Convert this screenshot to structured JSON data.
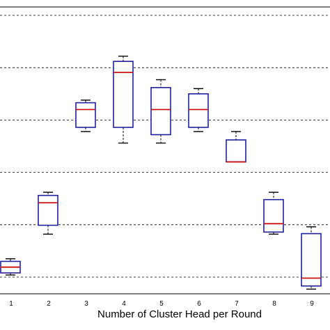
{
  "chart_data": {
    "type": "box",
    "title": "",
    "xlabel": "Number of Cluster Head per Round",
    "ylabel": "",
    "categories": [
      "1",
      "2",
      "3",
      "4",
      "5",
      "6",
      "7",
      "8",
      "9"
    ],
    "ylim": [
      -0.4,
      5.4
    ],
    "yticks": [
      0,
      1,
      2,
      3,
      4,
      5
    ],
    "grid": "horizontal-dashed",
    "colors": {
      "box": "#1f1f9e",
      "median": "#cc1111",
      "whisker": "#000000",
      "grid": "#000000"
    },
    "boxes": [
      {
        "label": "1",
        "min": 0.04,
        "q1": 0.08,
        "median": 0.19,
        "q3": 0.3,
        "max": 0.35
      },
      {
        "label": "2",
        "min": 0.82,
        "q1": 0.99,
        "median": 1.42,
        "q3": 1.56,
        "max": 1.62
      },
      {
        "label": "3",
        "min": 2.78,
        "q1": 2.86,
        "median": 3.2,
        "q3": 3.33,
        "max": 3.38
      },
      {
        "label": "4",
        "min": 2.56,
        "q1": 2.86,
        "median": 3.91,
        "q3": 4.12,
        "max": 4.22
      },
      {
        "label": "5",
        "min": 2.56,
        "q1": 2.72,
        "median": 3.2,
        "q3": 3.62,
        "max": 3.77
      },
      {
        "label": "6",
        "min": 2.78,
        "q1": 2.86,
        "median": 3.2,
        "q3": 3.5,
        "max": 3.6
      },
      {
        "label": "7",
        "min": null,
        "q1": 2.2,
        "median": 2.2,
        "q3": 2.62,
        "max": 2.78
      },
      {
        "label": "8",
        "min": 0.82,
        "q1": 0.86,
        "median": 1.02,
        "q3": 1.48,
        "max": 1.62
      },
      {
        "label": "9",
        "min": -0.23,
        "q1": -0.17,
        "median": -0.02,
        "q3": 0.83,
        "max": 0.96
      }
    ]
  }
}
